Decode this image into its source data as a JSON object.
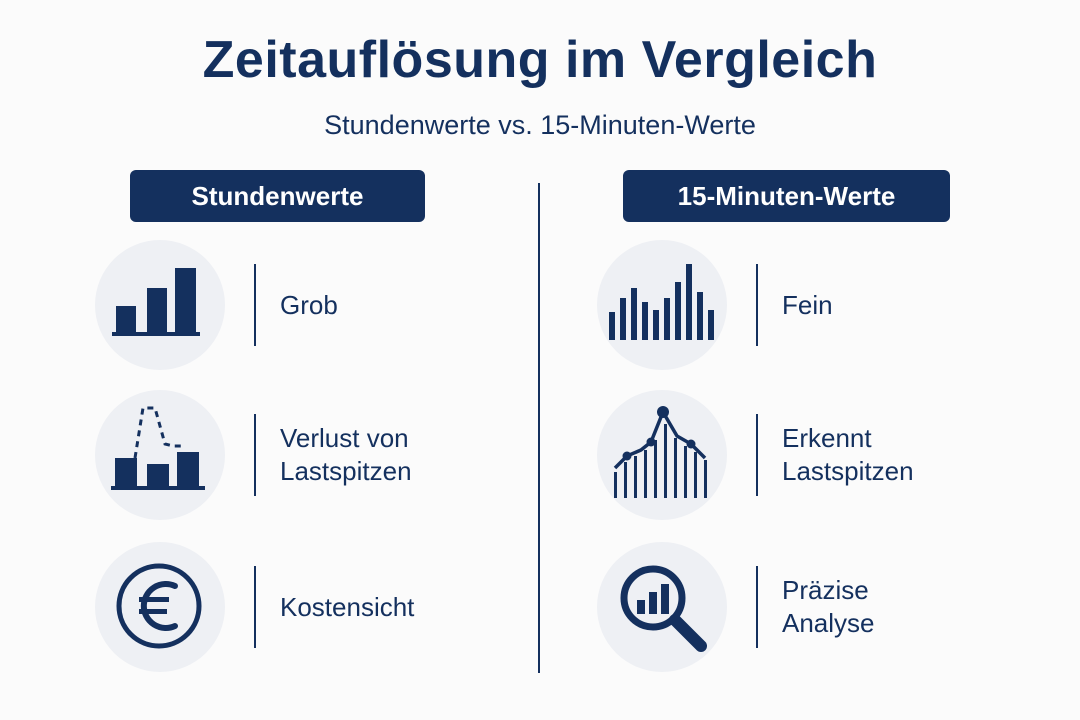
{
  "title": "Zeitauflösung im Vergleich",
  "subtitle": "Stundenwerte vs. 15-Minuten-Werte",
  "colors": {
    "primary": "#14305e",
    "circle_bg": "#eef0f4",
    "background": "#fbfbfb"
  },
  "left": {
    "header": "Stundenwerte",
    "rows": [
      {
        "icon": "bar-chart-icon",
        "lines": [
          "Grob"
        ]
      },
      {
        "icon": "lost-peak-bars-icon",
        "lines": [
          "Verlust von",
          "Lastspitzen"
        ]
      },
      {
        "icon": "euro-icon",
        "lines": [
          "Kostensicht"
        ]
      }
    ]
  },
  "right": {
    "header": "15-Minuten-Werte",
    "rows": [
      {
        "icon": "fine-bar-chart-icon",
        "lines": [
          "Fein"
        ]
      },
      {
        "icon": "peak-line-chart-icon",
        "lines": [
          "Erkennt",
          "Lastspitzen"
        ]
      },
      {
        "icon": "magnifier-chart-icon",
        "lines": [
          "Präzise",
          "Analyse"
        ]
      }
    ]
  }
}
